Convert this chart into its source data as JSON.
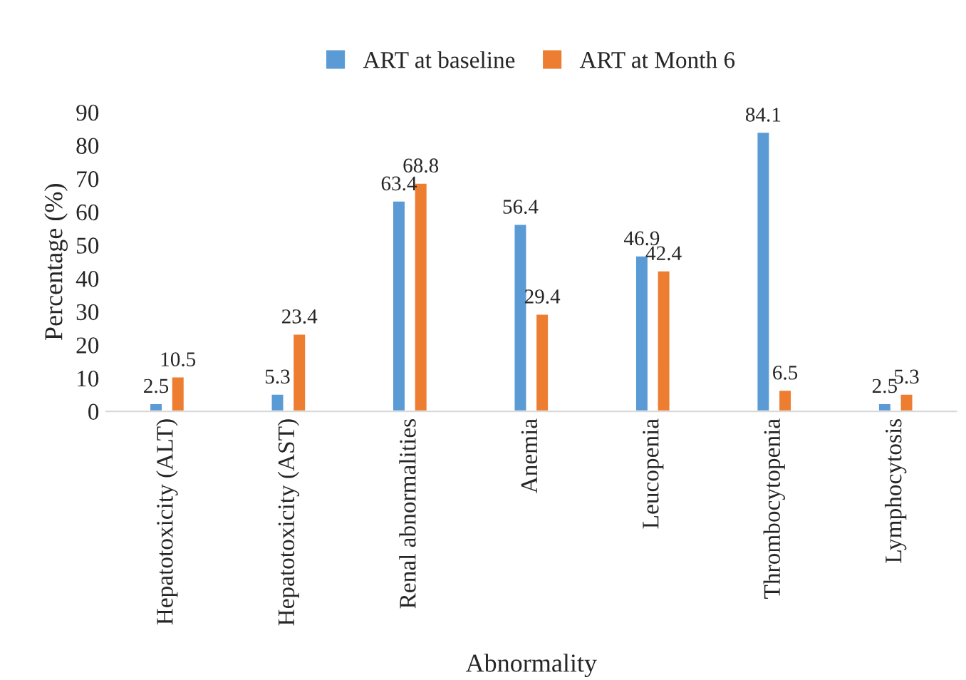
{
  "chart_data": {
    "type": "bar",
    "xlabel": "Abnormality",
    "ylabel": "Percentage (%)",
    "categories": [
      "Hepatotoxicity (ALT)",
      "Hepatotoxicity (AST)",
      "Renal abnormalities",
      "Anemia",
      "Leucopenia",
      "Thrombocytopenia",
      "Lymphocytosis"
    ],
    "series": [
      {
        "name": "ART at baseline",
        "color": "#5b9bd5",
        "values": [
          2.5,
          5.3,
          63.4,
          56.4,
          46.9,
          84.1,
          2.5
        ]
      },
      {
        "name": "ART at Month 6",
        "color": "#ed7d31",
        "values": [
          10.5,
          23.4,
          68.8,
          29.4,
          42.4,
          6.5,
          5.3
        ]
      }
    ],
    "ylim": [
      0,
      90
    ],
    "yticks": [
      0,
      10,
      20,
      30,
      40,
      50,
      60,
      70,
      80,
      90
    ],
    "data_labels": true,
    "grid": false,
    "legend": "top"
  }
}
